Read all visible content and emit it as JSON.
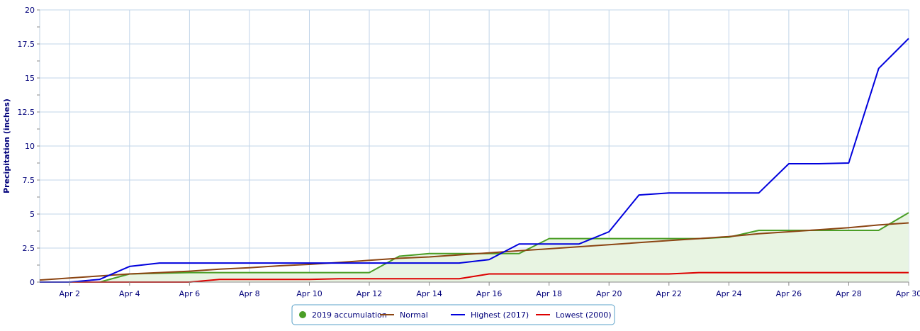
{
  "chart_data": {
    "type": "line",
    "ylabel": "Precipitation (inches)",
    "xlabel": "",
    "ylim": [
      0,
      20
    ],
    "y_ticks": [
      0,
      2.5,
      5,
      7.5,
      10,
      12.5,
      15,
      17.5,
      20
    ],
    "y_tick_labels": [
      "0",
      "2.5",
      "5",
      "7.5",
      "10",
      "12.5",
      "15",
      "17.5",
      "20"
    ],
    "x_tick_days": [
      2,
      4,
      6,
      8,
      10,
      12,
      14,
      16,
      18,
      20,
      22,
      24,
      26,
      28,
      30
    ],
    "x_tick_labels": [
      "Apr 2",
      "Apr 4",
      "Apr 6",
      "Apr 8",
      "Apr 10",
      "Apr 12",
      "Apr 14",
      "Apr 16",
      "Apr 18",
      "Apr 20",
      "Apr 22",
      "Apr 24",
      "Apr 26",
      "Apr 28",
      "Apr 30"
    ],
    "grid": true,
    "legend_position": "bottom-center",
    "x": [
      "Apr 1",
      "Apr 2",
      "Apr 3",
      "Apr 4",
      "Apr 5",
      "Apr 6",
      "Apr 7",
      "Apr 8",
      "Apr 9",
      "Apr 10",
      "Apr 11",
      "Apr 12",
      "Apr 13",
      "Apr 14",
      "Apr 15",
      "Apr 16",
      "Apr 17",
      "Apr 18",
      "Apr 19",
      "Apr 20",
      "Apr 21",
      "Apr 22",
      "Apr 23",
      "Apr 24",
      "Apr 25",
      "Apr 26",
      "Apr 27",
      "Apr 28",
      "Apr 29",
      "Apr 30"
    ],
    "series": [
      {
        "name": "2019 accumulation",
        "color": "#4a9e26",
        "fill": "#e8f4e2",
        "area": true,
        "values": [
          0,
          0,
          0,
          0.6,
          0.65,
          0.7,
          0.7,
          0.7,
          0.7,
          0.7,
          0.7,
          0.7,
          1.9,
          2.1,
          2.1,
          2.1,
          2.1,
          3.2,
          3.2,
          3.2,
          3.2,
          3.2,
          3.2,
          3.3,
          3.8,
          3.8,
          3.8,
          3.8,
          3.8,
          5.1
        ]
      },
      {
        "name": "Normal",
        "color": "#8b4513",
        "area": false,
        "values": [
          0.15,
          0.3,
          0.45,
          0.6,
          0.7,
          0.8,
          0.95,
          1.05,
          1.2,
          1.3,
          1.45,
          1.6,
          1.75,
          1.85,
          2.0,
          2.15,
          2.3,
          2.45,
          2.6,
          2.75,
          2.9,
          3.05,
          3.2,
          3.35,
          3.55,
          3.7,
          3.85,
          4.0,
          4.2,
          4.35
        ]
      },
      {
        "name": "Highest (2017)",
        "color": "#0000dd",
        "area": false,
        "values": [
          0,
          0,
          0.2,
          1.15,
          1.4,
          1.4,
          1.4,
          1.4,
          1.4,
          1.4,
          1.4,
          1.4,
          1.4,
          1.4,
          1.4,
          1.65,
          2.8,
          2.8,
          2.8,
          3.7,
          6.4,
          6.55,
          6.55,
          6.55,
          6.55,
          8.7,
          8.7,
          8.75,
          15.7,
          17.9
        ]
      },
      {
        "name": "Lowest (2000)",
        "color": "#dd0000",
        "area": false,
        "values": [
          0,
          0,
          0,
          0,
          0,
          0,
          0.2,
          0.2,
          0.2,
          0.2,
          0.25,
          0.25,
          0.25,
          0.25,
          0.25,
          0.6,
          0.6,
          0.6,
          0.6,
          0.6,
          0.6,
          0.6,
          0.7,
          0.7,
          0.7,
          0.7,
          0.7,
          0.7,
          0.7,
          0.7
        ]
      }
    ]
  }
}
